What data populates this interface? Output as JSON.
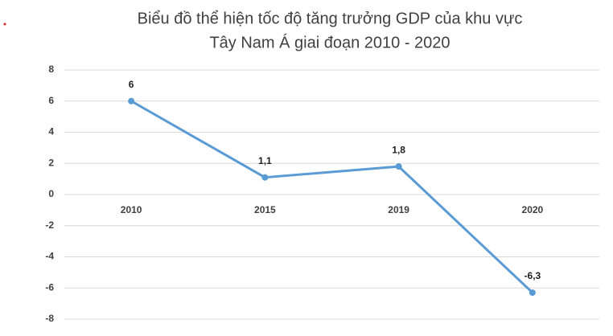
{
  "chart_data": {
    "type": "line",
    "title": [
      "Biểu đồ thể hiện tốc độ tăng trưởng GDP của khu vực",
      "Tây Nam Á giai đoạn 2010 - 2020"
    ],
    "categories": [
      "2010",
      "2015",
      "2019",
      "2020"
    ],
    "values": [
      6,
      1.1,
      1.8,
      -6.3
    ],
    "value_labels": [
      "6",
      "1,1",
      "1,8",
      "-6,3"
    ],
    "color": "#5b9bd5",
    "ylim": [
      -8,
      8
    ],
    "yticks": [
      8,
      6,
      4,
      2,
      0,
      -2,
      -4,
      -6,
      -8
    ],
    "grid": true
  }
}
